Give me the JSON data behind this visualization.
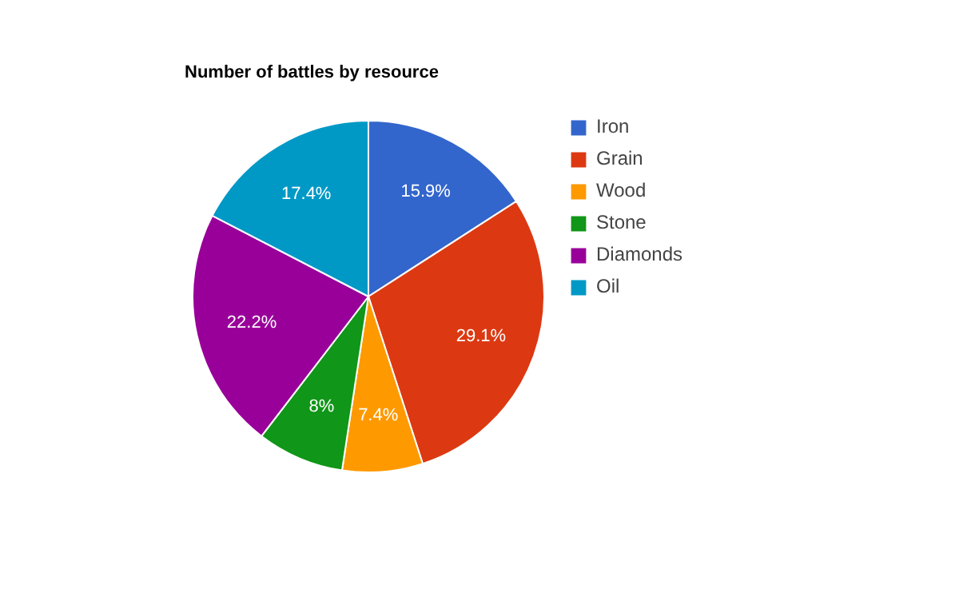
{
  "chart_data": {
    "type": "pie",
    "title": "Number of battles by resource",
    "categories": [
      "Iron",
      "Grain",
      "Wood",
      "Stone",
      "Diamonds",
      "Oil"
    ],
    "values": [
      15.9,
      29.1,
      7.4,
      8,
      22.2,
      17.4
    ],
    "colors": [
      "#3366cc",
      "#dc3912",
      "#ff9900",
      "#109618",
      "#990099",
      "#0099c6"
    ],
    "value_labels": [
      "15.9%",
      "29.1%",
      "7.4%",
      "8%",
      "22.2%",
      "17.4%"
    ],
    "legend": "right"
  }
}
